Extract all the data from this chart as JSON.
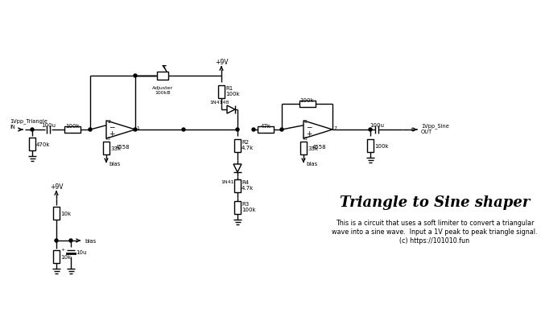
{
  "title": "Triangle to Sine shaper",
  "desc1": "This is a circuit that uses a soft limiter to convert a triangular",
  "desc2": "wave into a sine wave.  Input a 1V peak to peak triangle signal.",
  "desc3": "(c) https://101010.fun",
  "bg_color": "#ffffff",
  "lc": "#000000",
  "lw": 1.0
}
